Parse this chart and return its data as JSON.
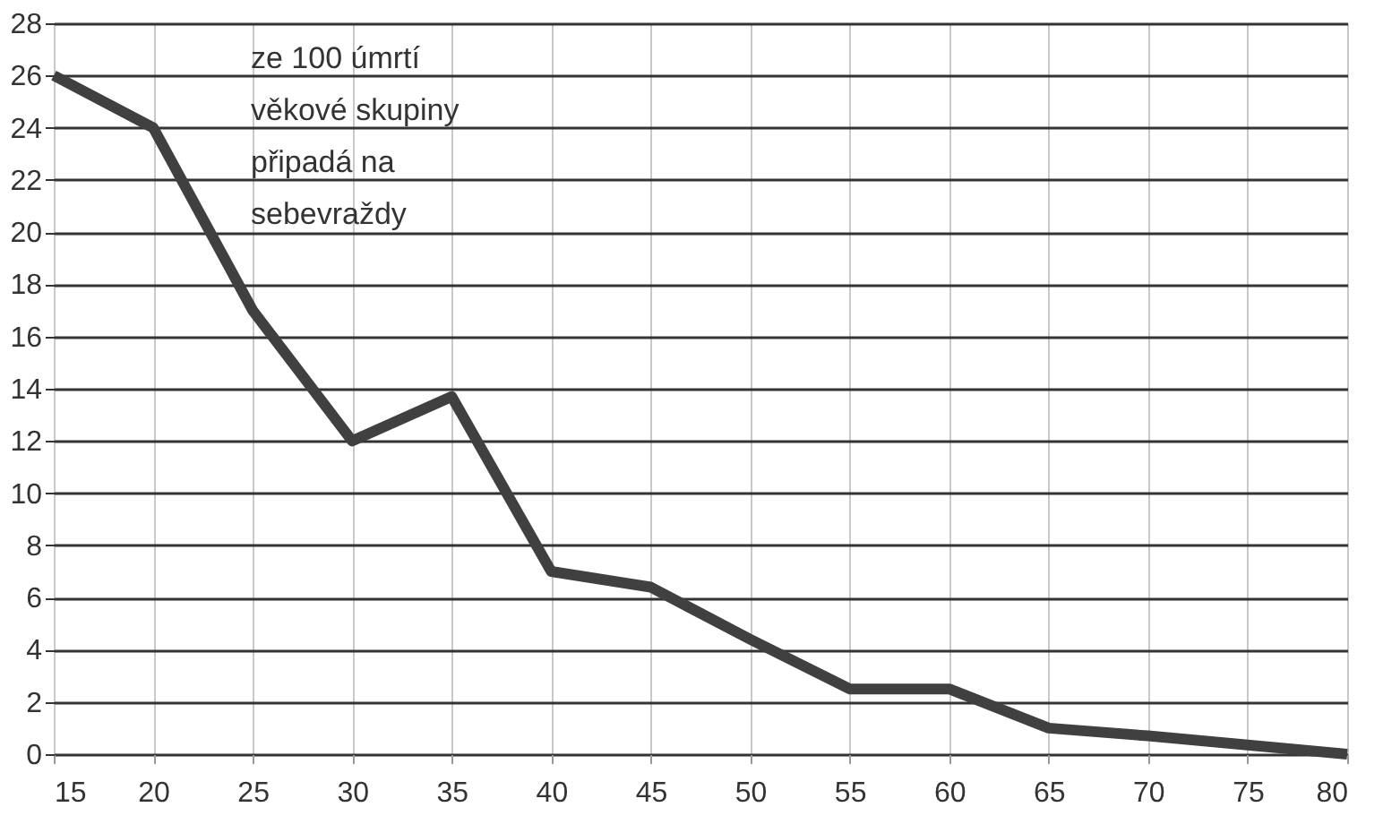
{
  "chart_data": {
    "type": "line",
    "x": [
      15,
      20,
      25,
      30,
      35,
      40,
      45,
      50,
      55,
      60,
      65,
      70,
      75,
      80
    ],
    "series": [
      {
        "color": "#404040",
        "values": [
          26,
          24,
          17,
          12,
          13.7,
          7,
          6.4,
          4.4,
          2.5,
          2.5,
          1,
          0.7,
          0.35,
          0
        ]
      }
    ],
    "xlim": [
      15,
      80
    ],
    "xticks": [
      15,
      20,
      25,
      30,
      35,
      40,
      45,
      50,
      55,
      60,
      65,
      70,
      75,
      80
    ],
    "ylim": [
      0,
      28
    ],
    "yticks": [
      0,
      2,
      4,
      6,
      8,
      10,
      12,
      14,
      16,
      18,
      20,
      22,
      24,
      26,
      28
    ],
    "grid": true,
    "line_style": "solid",
    "marker": "none",
    "annotations": [
      "ze 100 úmrtí\nvěkové skupiny\npřipadá na\nsebevraždy"
    ]
  }
}
